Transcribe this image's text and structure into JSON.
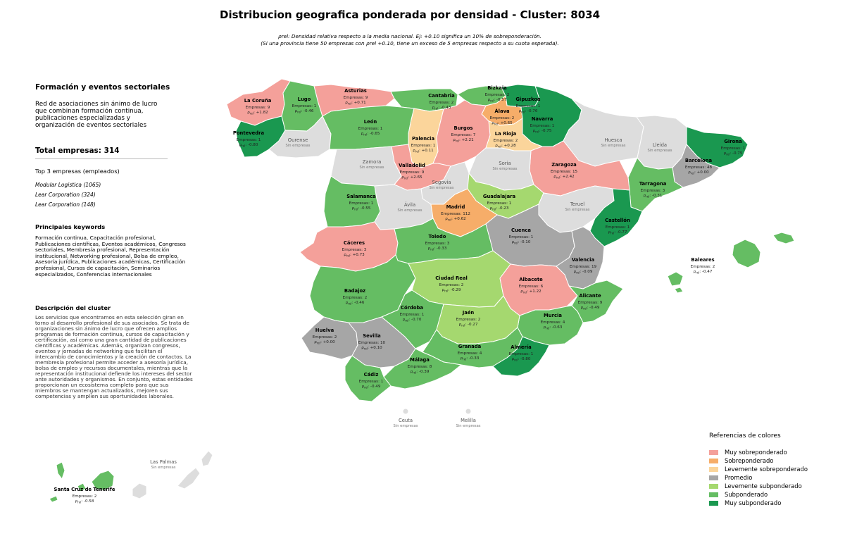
{
  "title": "Distribucion geografica ponderada por densidad - Cluster: 8034",
  "subtitle": {
    "line1": "ρrel: Densidad relativa respecto a la media nacional. Ej: +0.10 significa un 10% de sobreponderación.",
    "line2": "(Si una provincia tiene 50 empresas con ρrel +0.10, tiene un exceso de 5 empresas respecto a su cuota esperada)."
  },
  "panel": {
    "heading": "Formación y eventos sectoriales",
    "short_description": "Red de asociaciones sin ánimo de lucro que combinan formación continua, publicaciones especializadas y organización de eventos sectoriales",
    "total": "Total empresas: 314",
    "top3_label": "Top 3 empresas (empleados)",
    "top_companies": [
      "Modular Logistica (1065)",
      "Lear Corporation (324)",
      "Lear Corporation (148)"
    ],
    "keywords_title": "Principales keywords",
    "keywords": "Formación continua, Capacitación profesional, Publicaciones científicas, Eventos académicos, Congresos sectoriales, Membresía profesional, Representación institucional, Networking profesional, Bolsa de empleo, Asesoría jurídica, Publicaciones académicas, Certificación profesional, Cursos de capacitación, Seminarios especializados, Conferencias internacionales",
    "cluster_desc_title": "Descripción del cluster",
    "cluster_desc": "Los servicios que encontramos en esta selección giran en torno al desarrollo profesional de sus asociados. Se trata de organizaciones sin ánimo de lucro que ofrecen amplios programas de formación continua, cursos de capacitación y certificación, así como una gran cantidad de publicaciones científicas y académicas. Además, organizan congresos, eventos y jornadas de networking que facilitan el intercambio de conocimientos y la creación de contactos. La membresía profesional permite acceder a asesoría jurídica, bolsa de empleo y recursos documentales, mientras que la representación institucional defiende los intereses del sector ante autoridades y organismos. En conjunto, estas entidades proporcionan un ecosistema completo para que sus miembros se mantengan actualizados, mejoren sus competencias y amplíen sus oportunidades laborales."
  },
  "legend": {
    "title": "Referencias de colores",
    "items": [
      {
        "label": "Muy sobreponderado",
        "color": "#f4a09a"
      },
      {
        "label": "Sobreponderado",
        "color": "#f6ad69"
      },
      {
        "label": "Levemente sobreponderado",
        "color": "#fbd59b"
      },
      {
        "label": "Promedio",
        "color": "#a6a6a6"
      },
      {
        "label": "Levemente subponderado",
        "color": "#a5d86f"
      },
      {
        "label": "Subponderado",
        "color": "#65bd63"
      },
      {
        "label": "Muy subponderado",
        "color": "#1a9850"
      }
    ]
  },
  "no_data": {
    "label": "Sin empresas",
    "color": "#dddddd"
  },
  "provinces": [
    {
      "id": "la-coruna",
      "name": "La Coruña",
      "empresas": "Empresas: 9",
      "rho": "+1.82",
      "cat": 0
    },
    {
      "id": "lugo",
      "name": "Lugo",
      "empresas": "Empresas: 1",
      "rho": "-0.46",
      "cat": 5
    },
    {
      "id": "asturias",
      "name": "Asturias",
      "empresas": "Empresas: 9",
      "rho": "+0.71",
      "cat": 0
    },
    {
      "id": "cantabria",
      "name": "Cantabria",
      "empresas": "Empresas: 2",
      "rho": "-0.43",
      "cat": 5
    },
    {
      "id": "bizkaia",
      "name": "Bizkaia",
      "empresas": "Empresas: 2",
      "rho": "-0.57",
      "cat": 5
    },
    {
      "id": "gipuzkoa",
      "name": "Gipuzkoa",
      "empresas": "Empresas: 1",
      "rho": "-0.76",
      "cat": 6
    },
    {
      "id": "alava",
      "name": "Álava",
      "empresas": "Empresas: 2",
      "rho": "+0.65",
      "cat": 1
    },
    {
      "id": "navarra",
      "name": "Navarra",
      "empresas": "Empresas: 1",
      "rho": "-0.75",
      "cat": 6
    },
    {
      "id": "pontevedra",
      "name": "Pontevedra",
      "empresas": "Empresas: 1",
      "rho": "-0.80",
      "cat": 6
    },
    {
      "id": "leon",
      "name": "León",
      "empresas": "Empresas: 1",
      "rho": "-0.65",
      "cat": 5
    },
    {
      "id": "burgos",
      "name": "Burgos",
      "empresas": "Empresas: 7",
      "rho": "+2.21",
      "cat": 0
    },
    {
      "id": "la-rioja",
      "name": "La Rioja",
      "empresas": "Empresas: 2",
      "rho": "+0.28",
      "cat": 2
    },
    {
      "id": "palencia",
      "name": "Palencia",
      "empresas": "Empresas: 1",
      "rho": "+0.11",
      "cat": 2
    },
    {
      "id": "girona",
      "name": "Girona",
      "empresas": "Empresas: 1",
      "rho": "-0.75",
      "cat": 6
    },
    {
      "id": "barcelona",
      "name": "Barcelona",
      "empresas": "Empresas: 48",
      "rho": "+0.00",
      "cat": 3
    },
    {
      "id": "zaragoza",
      "name": "Zaragoza",
      "empresas": "Empresas: 15",
      "rho": "+2.42",
      "cat": 0
    },
    {
      "id": "valladolid",
      "name": "Valladolid",
      "empresas": "Empresas: 9",
      "rho": "+2.65",
      "cat": 0
    },
    {
      "id": "tarragona",
      "name": "Tarragona",
      "empresas": "Empresas: 3",
      "rho": "-0.31",
      "cat": 5
    },
    {
      "id": "salamanca",
      "name": "Salamanca",
      "empresas": "Empresas: 1",
      "rho": "-0.55",
      "cat": 5
    },
    {
      "id": "madrid",
      "name": "Madrid",
      "empresas": "Empresas: 112",
      "rho": "+0.62",
      "cat": 1
    },
    {
      "id": "guadalajara",
      "name": "Guadalajara",
      "empresas": "Empresas: 1",
      "rho": "-0.23",
      "cat": 4
    },
    {
      "id": "castellon",
      "name": "Castellón",
      "empresas": "Empresas: 1",
      "rho": "-0.77",
      "cat": 6
    },
    {
      "id": "caceres",
      "name": "Cáceres",
      "empresas": "Empresas: 3",
      "rho": "+0.73",
      "cat": 0
    },
    {
      "id": "toledo",
      "name": "Toledo",
      "empresas": "Empresas: 3",
      "rho": "-0.33",
      "cat": 5
    },
    {
      "id": "cuenca",
      "name": "Cuenca",
      "empresas": "Empresas: 1",
      "rho": "-0.10",
      "cat": 3
    },
    {
      "id": "valencia",
      "name": "Valencia",
      "empresas": "Empresas: 19",
      "rho": "-0.09",
      "cat": 3
    },
    {
      "id": "baleares",
      "name": "Baleares",
      "empresas": "Empresas: 2",
      "rho": "-0.47",
      "cat": 5
    },
    {
      "id": "ciudad-real",
      "name": "Ciudad Real",
      "empresas": "Empresas: 2",
      "rho": "-0.29",
      "cat": 4
    },
    {
      "id": "albacete",
      "name": "Albacete",
      "empresas": "Empresas: 6",
      "rho": "+1.22",
      "cat": 0
    },
    {
      "id": "badajoz",
      "name": "Badajoz",
      "empresas": "Empresas: 2",
      "rho": "-0.46",
      "cat": 5
    },
    {
      "id": "alicante",
      "name": "Alicante",
      "empresas": "Empresas: 9",
      "rho": "-0.49",
      "cat": 5
    },
    {
      "id": "cordoba",
      "name": "Córdoba",
      "empresas": "Empresas: 1",
      "rho": "-0.70",
      "cat": 5
    },
    {
      "id": "jaen",
      "name": "Jaén",
      "empresas": "Empresas: 2",
      "rho": "-0.27",
      "cat": 4
    },
    {
      "id": "murcia",
      "name": "Murcia",
      "empresas": "Empresas: 4",
      "rho": "-0.63",
      "cat": 5
    },
    {
      "id": "huelva",
      "name": "Huelva",
      "empresas": "Empresas: 2",
      "rho": "+0.00",
      "cat": 3
    },
    {
      "id": "sevilla",
      "name": "Sevilla",
      "empresas": "Empresas: 10",
      "rho": "+0.10",
      "cat": 3
    },
    {
      "id": "granada",
      "name": "Granada",
      "empresas": "Empresas: 4",
      "rho": "-0.33",
      "cat": 5
    },
    {
      "id": "almeria",
      "name": "Almería",
      "empresas": "Empresas: 1",
      "rho": "-0.80",
      "cat": 6
    },
    {
      "id": "malaga",
      "name": "Málaga",
      "empresas": "Empresas: 8",
      "rho": "-0.39",
      "cat": 5
    },
    {
      "id": "cadiz",
      "name": "Cádiz",
      "empresas": "Empresas: 1",
      "rho": "-0.49",
      "cat": 5
    },
    {
      "id": "santa-cruz",
      "name": "Santa Cruz de Tenerife",
      "empresas": "Empresas: 2",
      "rho": "-0.58",
      "cat": 5
    }
  ],
  "empty_provinces": [
    {
      "id": "ourense",
      "name": "Ourense"
    },
    {
      "id": "huesca",
      "name": "Huesca"
    },
    {
      "id": "lleida",
      "name": "Lleida"
    },
    {
      "id": "zamora",
      "name": "Zamora"
    },
    {
      "id": "soria",
      "name": "Soria"
    },
    {
      "id": "segovia",
      "name": "Segovia"
    },
    {
      "id": "avila",
      "name": "Ávila"
    },
    {
      "id": "teruel",
      "name": "Teruel"
    },
    {
      "id": "ceuta",
      "name": "Ceuta"
    },
    {
      "id": "melilla",
      "name": "Melilla"
    },
    {
      "id": "las-palmas",
      "name": "Las Palmas"
    }
  ]
}
